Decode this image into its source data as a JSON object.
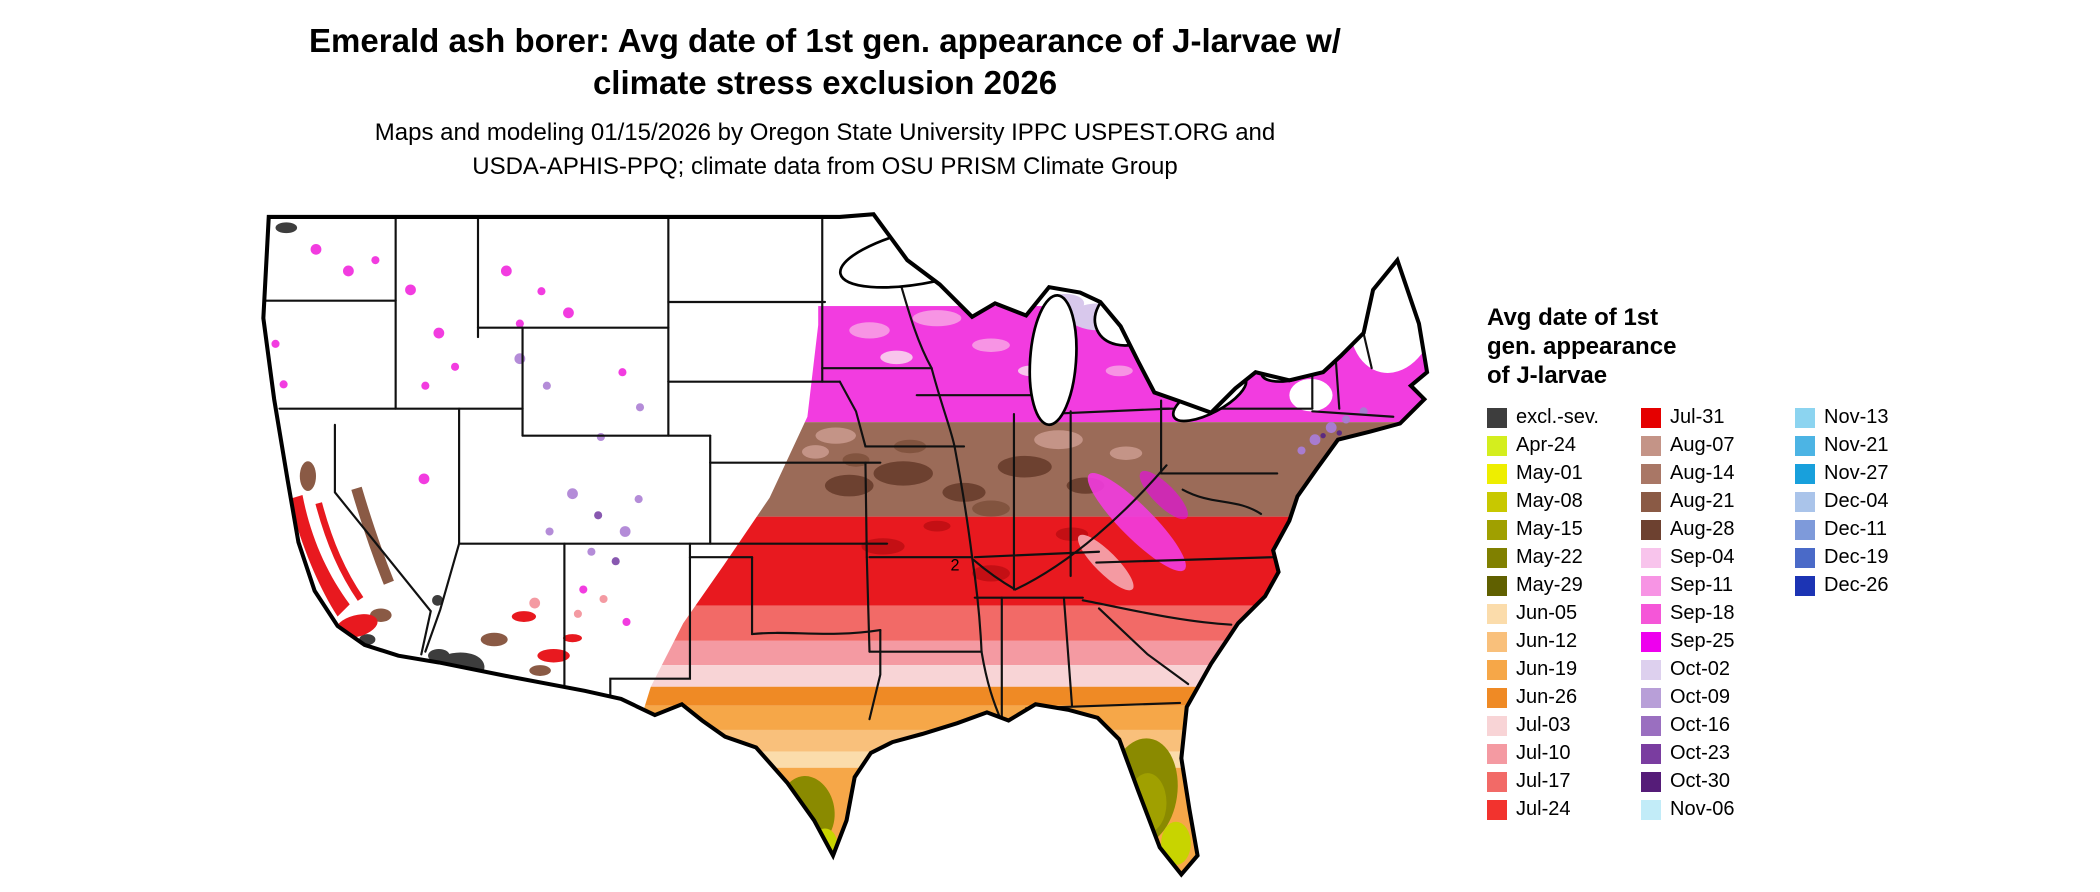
{
  "title": {
    "line1": "Emerald ash borer: Avg date of 1st gen. appearance of J-larvae w/",
    "line2": "climate stress exclusion 2026"
  },
  "subtitle": {
    "line1": "Maps and modeling 01/15/2026 by Oregon State University IPPC USPEST.ORG and",
    "line2": "USDA-APHIS-PPQ; climate data from OSU PRISM Climate Group"
  },
  "map": {
    "annotation": "2"
  },
  "legend": {
    "title_lines": [
      "Avg date of 1st",
      "gen. appearance",
      "of J-larvae"
    ],
    "columns": [
      [
        {
          "label": "excl.-sev.",
          "color": "#3d3d3d"
        },
        {
          "label": "Apr-24",
          "color": "#d4ee1e"
        },
        {
          "label": "May-01",
          "color": "#eeee00"
        },
        {
          "label": "May-08",
          "color": "#c8c800"
        },
        {
          "label": "May-15",
          "color": "#a0a000"
        },
        {
          "label": "May-22",
          "color": "#808000"
        },
        {
          "label": "May-29",
          "color": "#606000"
        },
        {
          "label": "Jun-05",
          "color": "#fbdcab"
        },
        {
          "label": "Jun-12",
          "color": "#f9c07b"
        },
        {
          "label": "Jun-19",
          "color": "#f6a748"
        },
        {
          "label": "Jun-26",
          "color": "#ef8a25"
        },
        {
          "label": "Jul-03",
          "color": "#f8d4d6"
        },
        {
          "label": "Jul-10",
          "color": "#f49aa2"
        },
        {
          "label": "Jul-17",
          "color": "#f26a67"
        },
        {
          "label": "Jul-24",
          "color": "#f2332e"
        }
      ],
      [
        {
          "label": "Jul-31",
          "color": "#e50000"
        },
        {
          "label": "Aug-07",
          "color": "#c49487"
        },
        {
          "label": "Aug-14",
          "color": "#a97766"
        },
        {
          "label": "Aug-21",
          "color": "#8a5a45"
        },
        {
          "label": "Aug-28",
          "color": "#6d4130"
        },
        {
          "label": "Sep-04",
          "color": "#f8c4ec"
        },
        {
          "label": "Sep-11",
          "color": "#f794e4"
        },
        {
          "label": "Sep-18",
          "color": "#f556d8"
        },
        {
          "label": "Sep-25",
          "color": "#ee00ee"
        },
        {
          "label": "Oct-02",
          "color": "#ddd0ee"
        },
        {
          "label": "Oct-09",
          "color": "#b89fd8"
        },
        {
          "label": "Oct-16",
          "color": "#9a6fc0"
        },
        {
          "label": "Oct-23",
          "color": "#7a3da0"
        },
        {
          "label": "Oct-30",
          "color": "#551c78"
        },
        {
          "label": "Nov-06",
          "color": "#c2ecf8"
        }
      ],
      [
        {
          "label": "Nov-13",
          "color": "#8cd4f0"
        },
        {
          "label": "Nov-21",
          "color": "#4cb4e4"
        },
        {
          "label": "Nov-27",
          "color": "#18a0dc"
        },
        {
          "label": "Dec-04",
          "color": "#aac4ea"
        },
        {
          "label": "Dec-11",
          "color": "#7e9ada"
        },
        {
          "label": "Dec-19",
          "color": "#4a6ac8"
        },
        {
          "label": "Dec-26",
          "color": "#1c34b4"
        }
      ]
    ]
  }
}
